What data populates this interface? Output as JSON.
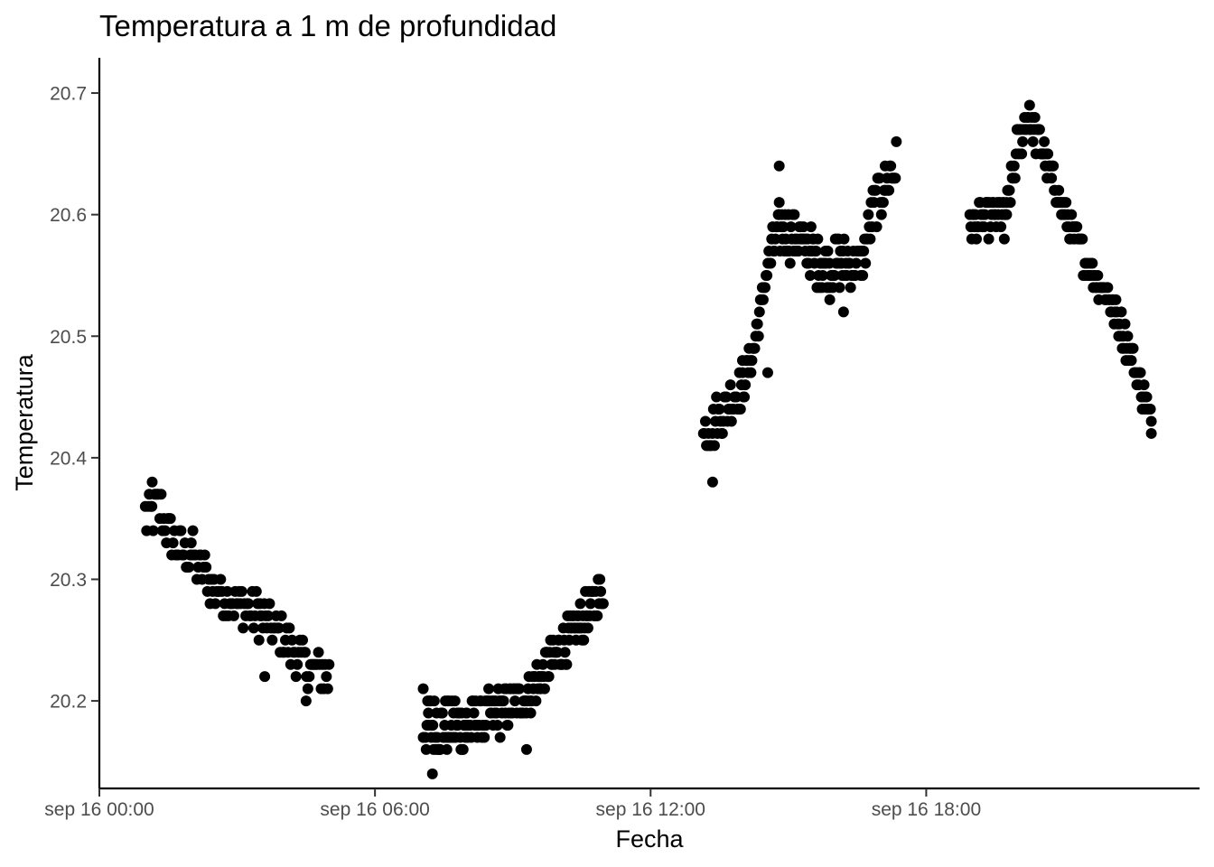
{
  "chart_data": {
    "type": "scatter",
    "title": "Temperatura a 1 m de profundidad",
    "xlabel": "Fecha",
    "ylabel": "Temperatura",
    "x_unit": "hours",
    "x_ticks": [
      {
        "value": 0,
        "label": "sep 16 00:00"
      },
      {
        "value": 6,
        "label": "sep 16 06:00"
      },
      {
        "value": 12,
        "label": "sep 16 12:00"
      },
      {
        "value": 18,
        "label": "sep 16 18:00"
      }
    ],
    "y_ticks": [
      {
        "value": 20.2,
        "label": "20.2"
      },
      {
        "value": 20.3,
        "label": "20.3"
      },
      {
        "value": 20.4,
        "label": "20.4"
      },
      {
        "value": 20.5,
        "label": "20.5"
      },
      {
        "value": 20.6,
        "label": "20.6"
      },
      {
        "value": 20.7,
        "label": "20.7"
      }
    ],
    "xlim": [
      0,
      23.95
    ],
    "ylim": [
      20.128,
      20.729
    ],
    "grid": false,
    "legend": "none",
    "point_color": "#000000",
    "series": [
      {
        "segments": [
          {
            "x_start": 1.0,
            "x_end": 5.0,
            "anchors": [
              [
                1.0,
                20.35
              ],
              [
                1.3,
                20.36
              ],
              [
                1.6,
                20.33
              ],
              [
                2.0,
                20.32
              ],
              [
                2.6,
                20.29
              ],
              [
                3.0,
                20.28
              ],
              [
                3.5,
                20.27
              ],
              [
                4.0,
                20.25
              ],
              [
                4.5,
                20.23
              ],
              [
                5.0,
                20.22
              ]
            ],
            "spread": 0.018,
            "count": 140
          },
          {
            "x_start": 7.05,
            "x_end": 8.0,
            "anchors": [
              [
                7.05,
                20.18
              ],
              [
                7.4,
                20.18
              ],
              [
                7.7,
                20.18
              ],
              [
                8.0,
                20.18
              ]
            ],
            "spread": 0.025,
            "count": 60
          },
          {
            "x_start": 8.0,
            "x_end": 9.6,
            "anchors": [
              [
                8.0,
                20.18
              ],
              [
                8.6,
                20.19
              ],
              [
                9.2,
                20.2
              ],
              [
                9.6,
                20.22
              ]
            ],
            "spread": 0.018,
            "count": 85
          },
          {
            "x_start": 9.6,
            "x_end": 10.97,
            "anchors": [
              [
                9.6,
                20.22
              ],
              [
                10.0,
                20.24
              ],
              [
                10.4,
                20.26
              ],
              [
                10.8,
                20.28
              ],
              [
                10.97,
                20.29
              ]
            ],
            "spread": 0.018,
            "count": 75
          },
          {
            "x_start": 13.15,
            "x_end": 14.0,
            "anchors": [
              [
                13.15,
                20.42
              ],
              [
                13.6,
                20.44
              ],
              [
                14.0,
                20.46
              ]
            ],
            "spread": 0.02,
            "count": 40
          },
          {
            "x_start": 14.0,
            "x_end": 14.8,
            "anchors": [
              [
                14.0,
                20.46
              ],
              [
                14.3,
                20.5
              ],
              [
                14.55,
                20.56
              ],
              [
                14.8,
                20.59
              ]
            ],
            "spread": 0.015,
            "count": 40
          },
          {
            "x_start": 14.8,
            "x_end": 16.15,
            "anchors": [
              [
                14.8,
                20.59
              ],
              [
                15.2,
                20.58
              ],
              [
                15.7,
                20.56
              ],
              [
                16.15,
                20.56
              ]
            ],
            "spread": 0.02,
            "count": 75
          },
          {
            "x_start": 16.15,
            "x_end": 17.35,
            "anchors": [
              [
                16.15,
                20.56
              ],
              [
                16.6,
                20.56
              ],
              [
                16.9,
                20.61
              ],
              [
                17.35,
                20.64
              ]
            ],
            "spread": 0.02,
            "count": 60
          },
          {
            "x_start": 18.95,
            "x_end": 19.75,
            "anchors": [
              [
                18.95,
                20.59
              ],
              [
                19.5,
                20.6
              ],
              [
                19.75,
                20.6
              ]
            ],
            "spread": 0.015,
            "count": 40
          },
          {
            "x_start": 19.75,
            "x_end": 20.55,
            "anchors": [
              [
                19.75,
                20.6
              ],
              [
                20.0,
                20.66
              ],
              [
                20.2,
                20.68
              ],
              [
                20.55,
                20.65
              ]
            ],
            "spread": 0.015,
            "count": 40
          },
          {
            "x_start": 20.55,
            "x_end": 22.9,
            "anchors": [
              [
                20.55,
                20.65
              ],
              [
                21.0,
                20.6
              ],
              [
                21.5,
                20.56
              ],
              [
                22.0,
                20.53
              ],
              [
                22.5,
                20.48
              ],
              [
                22.9,
                20.43
              ]
            ],
            "spread": 0.012,
            "count": 120
          }
        ],
        "points": [
          [
            1.15,
            20.38
          ],
          [
            2.0,
            20.33
          ],
          [
            3.5,
            20.28
          ],
          [
            3.6,
            20.22
          ],
          [
            4.5,
            20.2
          ],
          [
            7.05,
            20.21
          ],
          [
            7.25,
            20.14
          ],
          [
            9.3,
            20.16
          ],
          [
            13.35,
            20.38
          ],
          [
            14.55,
            20.47
          ],
          [
            14.8,
            20.64
          ],
          [
            15.9,
            20.53
          ],
          [
            16.2,
            20.52
          ],
          [
            17.1,
            20.62
          ],
          [
            19.7,
            20.58
          ],
          [
            20.25,
            20.69
          ],
          [
            22.9,
            20.42
          ]
        ]
      }
    ]
  }
}
